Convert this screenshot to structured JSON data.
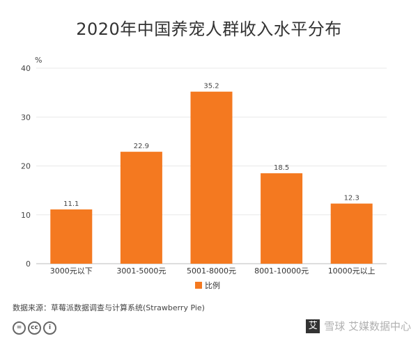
{
  "chart_data": {
    "type": "bar",
    "title": "2020年中国养宠人群收入水平分布",
    "ylabel": "%",
    "categories": [
      "3000元以下",
      "3001-5000元",
      "5001-8000元",
      "8001-10000元",
      "10000元以上"
    ],
    "series": [
      {
        "name": "比例",
        "values": [
          11.1,
          22.9,
          35.2,
          18.5,
          12.3
        ]
      }
    ],
    "ylim": [
      0,
      40
    ],
    "yticks": [
      0,
      10,
      20,
      30,
      40
    ],
    "legend": "bottom",
    "grid": true,
    "bar_color": "#f47920"
  },
  "footer": {
    "source": "数据来源：草莓派数据调查与计算系统(Strawberry Pie)",
    "license_icons": [
      "=",
      "cc",
      "i"
    ],
    "watermark": "雪球 艾媒数据中心"
  }
}
